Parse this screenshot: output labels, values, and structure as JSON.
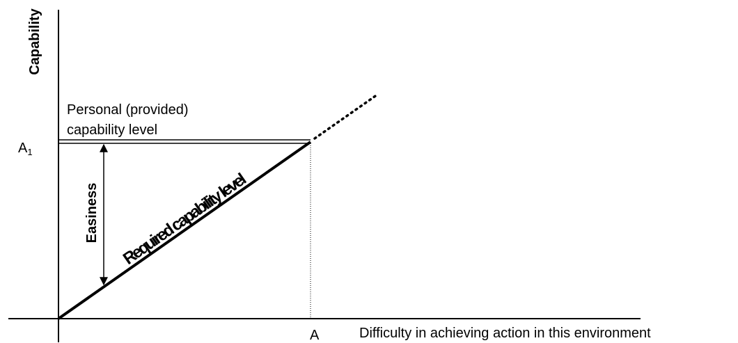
{
  "axes": {
    "y_label": "Capability",
    "x_label": "Difficulty in achieving action in this environment"
  },
  "markers": {
    "y_marker_base": "A",
    "y_marker_subscript": "1",
    "x_marker": "A"
  },
  "personal_level": {
    "line1": "Personal (provided)",
    "line2": "capability level"
  },
  "required_line": {
    "label": "Required capability level"
  },
  "easiness": {
    "label": "Easiness"
  },
  "colors": {
    "ink": "#000000",
    "background": "#ffffff"
  }
}
